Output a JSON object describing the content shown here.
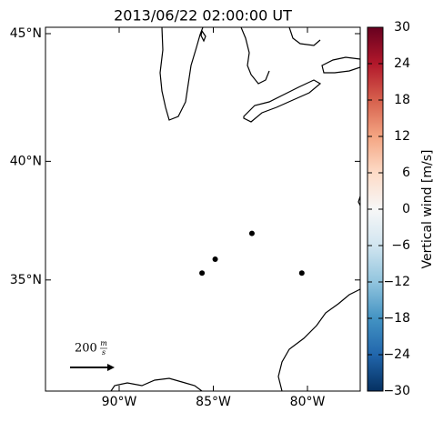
{
  "title": "2013/06/22 02:00:00 UT",
  "map": {
    "lat_ticks": [
      {
        "value": 45,
        "label": "45°N"
      },
      {
        "value": 40,
        "label": "40°N"
      },
      {
        "value": 35,
        "label": "35°N"
      }
    ],
    "lon_ticks": [
      {
        "value": -90,
        "label": "90°W"
      },
      {
        "value": -85,
        "label": "85°W"
      },
      {
        "value": -80,
        "label": "80°W"
      }
    ],
    "points": [
      {
        "lon": -82.95,
        "lat": 37.0
      },
      {
        "lon": -84.9,
        "lat": 35.9
      },
      {
        "lon": -85.6,
        "lat": 35.3
      },
      {
        "lon": -80.3,
        "lat": 35.3
      }
    ],
    "point_color": "#000000"
  },
  "scale_arrow": {
    "value": 200,
    "numerator": "m",
    "denominator": "s"
  },
  "colorbar": {
    "label": "Vertical wind [m/s]",
    "lim": [
      -30,
      30
    ],
    "ticks": [
      {
        "value": -30,
        "label": "−30"
      },
      {
        "value": -24,
        "label": "−24"
      },
      {
        "value": -18,
        "label": "−18"
      },
      {
        "value": -12,
        "label": "−12"
      },
      {
        "value": -6,
        "label": "−6"
      },
      0,
      6,
      12,
      18,
      24,
      30
    ]
  }
}
